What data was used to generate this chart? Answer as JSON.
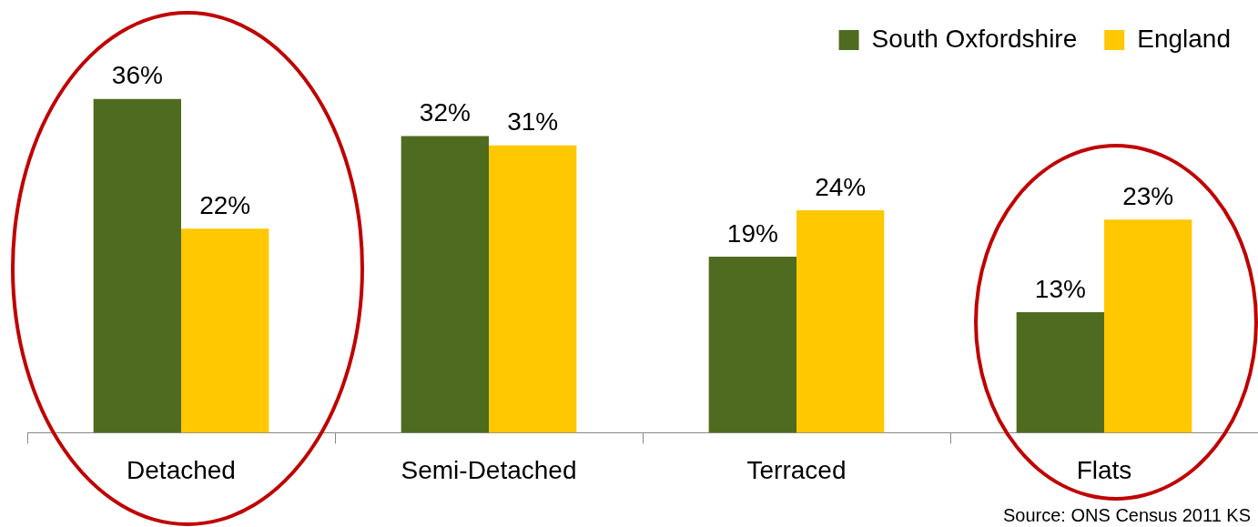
{
  "chart_data": {
    "type": "bar",
    "categories": [
      "Detached",
      "Semi-Detached",
      "Terraced",
      "Flats"
    ],
    "series": [
      {
        "name": "South Oxfordshire",
        "color": "#4f6b1f",
        "values": [
          36,
          32,
          19,
          13
        ],
        "value_labels": [
          "36%",
          "32%",
          "19%",
          "13%"
        ]
      },
      {
        "name": "England",
        "color": "#ffc800",
        "values": [
          22,
          31,
          24,
          23
        ],
        "value_labels": [
          "22%",
          "31%",
          "24%",
          "23%"
        ]
      }
    ],
    "legend": "top right",
    "grid": false,
    "annotations": [
      "Source: ONS Census 2011 KS"
    ]
  }
}
